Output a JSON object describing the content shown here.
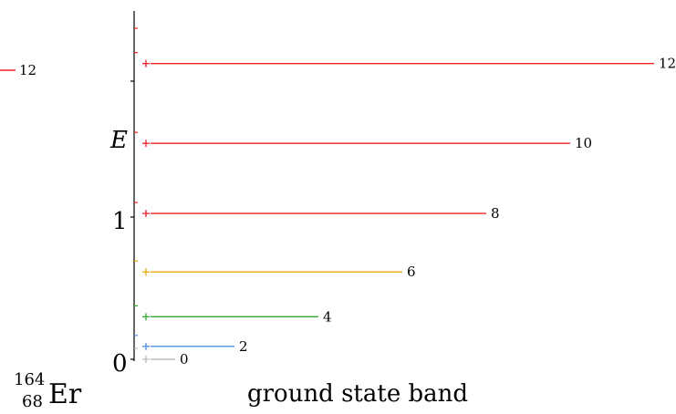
{
  "nucleus": {
    "mass_number": "164",
    "atomic_number": "68",
    "symbol": "Er"
  },
  "axis": {
    "energy_label": "E",
    "ticks": [
      "0",
      "1"
    ],
    "ylim": [
      0,
      1.8
    ]
  },
  "band": {
    "label": "ground state band",
    "levels": [
      {
        "spin": "0",
        "energy": 0.0,
        "color": "#bbbbbb"
      },
      {
        "spin": "2",
        "energy": 0.091,
        "color": "#4a90e2"
      },
      {
        "spin": "4",
        "energy": 0.299,
        "color": "#33aa33"
      },
      {
        "spin": "6",
        "energy": 0.614,
        "color": "#e6a800"
      },
      {
        "spin": "8",
        "energy": 1.025,
        "color": "#ee2222"
      },
      {
        "spin": "10",
        "energy": 1.518,
        "color": "#ee2222"
      },
      {
        "spin": "12",
        "energy": 2.079,
        "color": "#ee2222"
      }
    ]
  },
  "offscale_level": {
    "spin": "12",
    "color": "#ee2222"
  }
}
